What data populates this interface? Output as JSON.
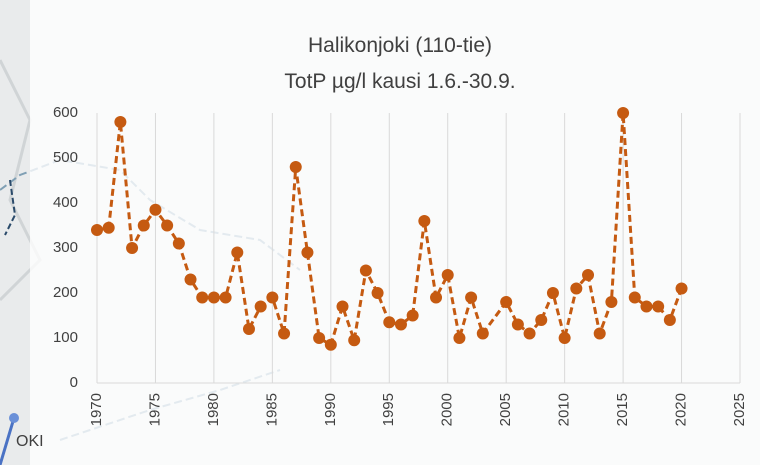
{
  "chart_data": {
    "type": "line",
    "title": "Halikonjoki (110-tie)",
    "subtitle": "TotP µg/l kausi 1.6.-30.9.",
    "map_label": "OKI",
    "x": [
      1970,
      1971,
      1972,
      1973,
      1974,
      1975,
      1976,
      1977,
      1978,
      1979,
      1980,
      1981,
      1982,
      1983,
      1984,
      1985,
      1986,
      1987,
      1988,
      1989,
      1990,
      1991,
      1992,
      1993,
      1994,
      1995,
      1996,
      1997,
      1998,
      1999,
      2000,
      2001,
      2002,
      2003,
      2005,
      2006,
      2007,
      2008,
      2009,
      2010,
      2011,
      2012,
      2013,
      2014,
      2015,
      2016,
      2017,
      2018,
      2019,
      2020
    ],
    "series": [
      {
        "name": "TotP",
        "color": "#c55a11",
        "values": [
          340,
          345,
          580,
          300,
          350,
          385,
          350,
          310,
          230,
          190,
          190,
          190,
          290,
          120,
          170,
          190,
          110,
          480,
          290,
          100,
          85,
          170,
          95,
          250,
          200,
          135,
          130,
          150,
          360,
          190,
          240,
          100,
          190,
          110,
          180,
          130,
          110,
          140,
          200,
          100,
          210,
          240,
          110,
          180,
          600,
          190,
          170,
          170,
          140,
          210
        ]
      }
    ],
    "xlim": [
      1970,
      2025
    ],
    "xticks": [
      1970,
      1975,
      1980,
      1985,
      1990,
      1995,
      2000,
      2005,
      2010,
      2015,
      2020,
      2025
    ],
    "ylim": [
      0,
      600
    ],
    "yticks": [
      0,
      100,
      200,
      300,
      400,
      500,
      600
    ],
    "grid": "x"
  }
}
